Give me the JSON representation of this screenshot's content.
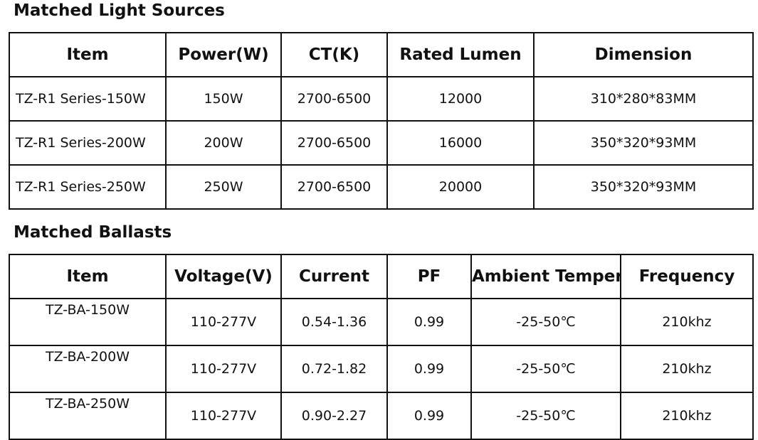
{
  "light_sources": {
    "title": "Matched Light Sources",
    "headers": [
      "Item",
      "Power(W)",
      "CT(K)",
      "Rated Lumen",
      "Dimension"
    ],
    "rows": [
      [
        "TZ-R1 Series-150W",
        "150W",
        "2700-6500",
        "12000",
        "310*280*83MM"
      ],
      [
        "TZ-R1 Series-200W",
        "200W",
        "2700-6500",
        "16000",
        "350*320*93MM"
      ],
      [
        "TZ-R1 Series-250W",
        "250W",
        "2700-6500",
        "20000",
        "350*320*93MM"
      ]
    ]
  },
  "ballasts": {
    "title": "Matched Ballasts",
    "headers": [
      "Item",
      "Voltage(V)",
      "Current",
      "PF",
      "Ambient Temperature",
      "Frequency"
    ],
    "rows": [
      [
        "TZ-BA-150W",
        "110-277V",
        "0.54-1.36",
        "0.99",
        "-25-50℃",
        "210khz"
      ],
      [
        "TZ-BA-200W",
        "110-277V",
        "0.72-1.82",
        "0.99",
        "-25-50℃",
        "210khz"
      ],
      [
        "TZ-BA-250W",
        "110-277V",
        "0.90-2.27",
        "0.99",
        "-25-50℃",
        "210khz"
      ]
    ]
  }
}
